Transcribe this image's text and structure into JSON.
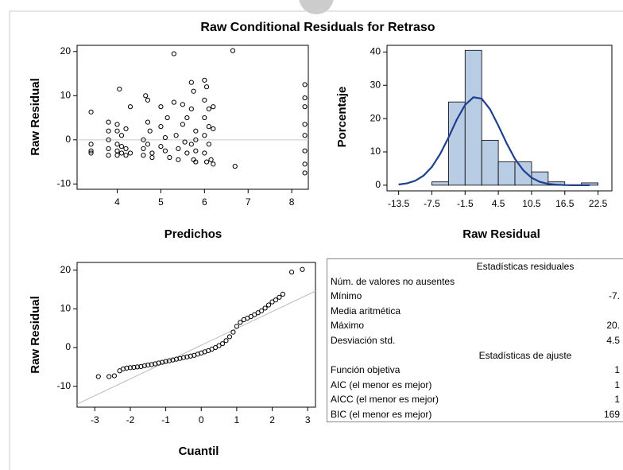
{
  "title": "Raw Conditional Residuals for Retraso",
  "chart_data": [
    {
      "type": "scatter",
      "xlabel": "Predichos",
      "ylabel": "Raw Residual",
      "xlim": [
        3.08,
        8.38
      ],
      "ylim": [
        -11.2,
        21.4
      ],
      "xticks": [
        4,
        5,
        6,
        7,
        8
      ],
      "yticks": [
        -10,
        0,
        10,
        20
      ],
      "reference_y": 0,
      "color": "#000000",
      "x": [
        3.4,
        3.4,
        3.4,
        3.4,
        3.8,
        3.8,
        3.8,
        3.8,
        3.8,
        4.0,
        4.0,
        4.0,
        4.0,
        4.0,
        4.05,
        4.1,
        4.1,
        4.1,
        4.2,
        4.2,
        4.2,
        4.3,
        4.3,
        4.6,
        4.6,
        4.6,
        4.65,
        4.7,
        4.7,
        4.7,
        4.75,
        4.8,
        4.8,
        5.0,
        5.0,
        5.0,
        5.1,
        5.1,
        5.15,
        5.2,
        5.3,
        5.3,
        5.35,
        5.4,
        5.4,
        5.5,
        5.5,
        5.55,
        5.6,
        5.6,
        5.7,
        5.7,
        5.7,
        5.75,
        5.75,
        5.8,
        5.8,
        5.8,
        5.8,
        6.0,
        6.0,
        6.0,
        6.0,
        6.0,
        6.05,
        6.05,
        6.1,
        6.1,
        6.1,
        6.15,
        6.2,
        6.2,
        6.2,
        6.65,
        6.7,
        8.3,
        8.3,
        8.3,
        8.3,
        8.3,
        8.3,
        8.3,
        8.3
      ],
      "y": [
        6.3,
        -1,
        -2.5,
        -3,
        4,
        2,
        0,
        -2,
        -3.5,
        3.5,
        2,
        -1,
        -2.5,
        -3.5,
        11.5,
        1,
        -1.5,
        -3,
        2.5,
        -2,
        -3.5,
        7.5,
        -3,
        0,
        -2,
        -3.5,
        10,
        9,
        4,
        -1,
        2,
        -3,
        -4,
        7.5,
        3,
        -1.5,
        0.5,
        -2.5,
        5,
        -4,
        19.5,
        8.5,
        1,
        -2,
        -4.5,
        8,
        3.5,
        -0.5,
        5,
        -3,
        13,
        7,
        -1,
        11,
        -4.5,
        2,
        0,
        -2.5,
        -5,
        13.5,
        9,
        5,
        1,
        -3,
        12,
        -5,
        7,
        3,
        -1,
        -4.5,
        7.5,
        2.5,
        -5.5,
        20.2,
        -6,
        12.5,
        9.5,
        7.5,
        3.5,
        1,
        -2.5,
        -5.5,
        -7.5
      ]
    },
    {
      "type": "histogram",
      "xlabel": "Raw Residual",
      "ylabel": "Porcentaje",
      "xlim": [
        -15.6,
        25
      ],
      "ylim": [
        -1.7,
        42
      ],
      "xticks": [
        -13.5,
        -7.5,
        -1.5,
        4.5,
        10.5,
        16.5,
        22.5
      ],
      "yticks": [
        0,
        10,
        20,
        30,
        40
      ],
      "bins": [
        -7.5,
        -4.5,
        -1.5,
        1.5,
        4.5,
        7.5,
        10.5,
        13.5,
        16.5,
        19.5,
        22.5
      ],
      "values": [
        1,
        25,
        40.5,
        13.5,
        7,
        7,
        4,
        1,
        0,
        0.7
      ],
      "color": "#b8cce4",
      "curve": {
        "color": "#1f3f8f",
        "x": [
          -13.5,
          -12,
          -10.5,
          -9,
          -7.5,
          -6,
          -4.5,
          -3,
          -1.5,
          0,
          1.5,
          3,
          4.5,
          6,
          7.5,
          9,
          10.5,
          12,
          13.5,
          15,
          16.5,
          18,
          19.5,
          21
        ],
        "y": [
          0.21,
          0.56,
          1.34,
          2.87,
          5.48,
          9.37,
          14.3,
          19.7,
          24.1,
          26.4,
          26.0,
          22.8,
          17.9,
          12.6,
          7.9,
          4.5,
          2.25,
          1.0,
          0.41,
          0.15,
          0.05,
          0.01,
          0,
          0
        ]
      }
    },
    {
      "type": "scatter",
      "xlabel": "Cuantil",
      "ylabel": "Raw Residual",
      "xlim": [
        -3.5,
        3.22
      ],
      "ylim": [
        -15.4,
        22
      ],
      "xticks": [
        -3,
        -2,
        -1,
        0,
        1,
        2,
        3
      ],
      "yticks": [
        -10,
        0,
        10,
        20
      ],
      "color": "#000000",
      "reference_line": {
        "x": [
          -3.5,
          3.22
        ],
        "y": [
          -14.6,
          14.6
        ]
      },
      "x": [
        -2.9,
        -2.6,
        -2.45,
        -2.3,
        -2.2,
        -2.1,
        -2.0,
        -1.9,
        -1.8,
        -1.7,
        -1.6,
        -1.5,
        -1.4,
        -1.3,
        -1.2,
        -1.1,
        -1.0,
        -0.9,
        -0.8,
        -0.7,
        -0.6,
        -0.5,
        -0.4,
        -0.3,
        -0.2,
        -0.1,
        0,
        0.1,
        0.2,
        0.3,
        0.4,
        0.5,
        0.6,
        0.7,
        0.8,
        0.9,
        1.0,
        1.1,
        1.2,
        1.3,
        1.4,
        1.5,
        1.6,
        1.7,
        1.8,
        1.9,
        2.0,
        2.1,
        2.2,
        2.3,
        2.55,
        2.85
      ],
      "y": [
        -7.5,
        -7.5,
        -7.3,
        -6,
        -5.5,
        -5.3,
        -5.2,
        -5.1,
        -5,
        -4.9,
        -4.7,
        -4.5,
        -4.4,
        -4.2,
        -4,
        -3.8,
        -3.6,
        -3.4,
        -3.2,
        -3,
        -2.8,
        -2.6,
        -2.4,
        -2.2,
        -2,
        -1.7,
        -1.4,
        -1.1,
        -0.8,
        -0.4,
        0,
        0.5,
        1,
        1.8,
        2.8,
        4,
        5.5,
        6.5,
        7.2,
        7.6,
        8,
        8.5,
        9,
        9.5,
        10.2,
        11,
        11.8,
        12.3,
        13,
        13.8,
        19.5,
        20.2
      ]
    }
  ],
  "table": {
    "rows": [
      {
        "header": "Estadísticas residuales"
      },
      {
        "label": "Núm. de valores no ausentes"
      },
      {
        "label": "Mínimo",
        "value": "-7."
      },
      {
        "label": "Media aritmética"
      },
      {
        "label": "Máximo",
        "value": "20."
      },
      {
        "label": "Desviación std.",
        "value": "4.5"
      },
      {
        "header": "Estadísticas de ajuste"
      },
      {
        "label": "Función objetiva",
        "value": "1"
      },
      {
        "label": "AIC (el menor es mejor)",
        "value": "1"
      },
      {
        "label": "AICC (el menor es mejor)",
        "value": "1"
      },
      {
        "label": "BIC (el menor es mejor)",
        "value": "169"
      }
    ]
  }
}
